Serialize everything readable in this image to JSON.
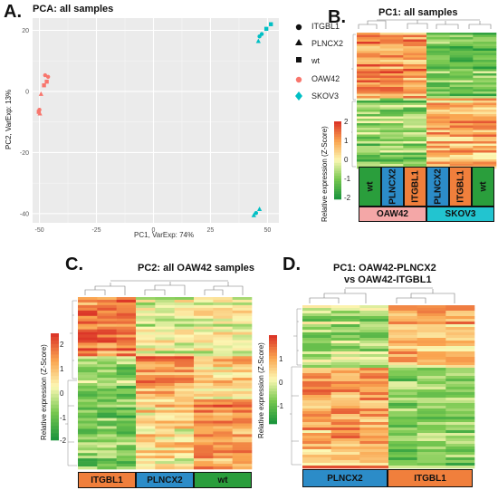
{
  "colors": {
    "oaw42": "#F8766D",
    "skov3": "#00BFC4",
    "box_orange": "#F07F3C",
    "box_blue": "#2C8CC8",
    "box_green": "#2A9E3C",
    "box_pink": "#F4A7A7",
    "box_cyan": "#22C4D0",
    "pca_bg": "#EBEBEB"
  },
  "panels": {
    "a": {
      "letter": "A."
    },
    "b": {
      "letter": "B.",
      "title": "PC1: all samples",
      "cb_label": "Relative expression (Z-Score)",
      "cb_ticks": [
        "2",
        "1",
        "0",
        "-1",
        "-2"
      ],
      "boxes_top": [
        "wt",
        "PLNCX2",
        "ITGBL1",
        "PLNCX2",
        "ITGBL1",
        "wt"
      ],
      "boxes_bottom": [
        "OAW42",
        "SKOV3"
      ]
    },
    "c": {
      "letter": "C.",
      "title": "PC2: all OAW42 samples",
      "cb_label": "Relative expression (Z-Score)",
      "cb_ticks": [
        "2",
        "1",
        "0",
        "-1",
        "-2"
      ],
      "boxes": [
        "ITGBL1",
        "PLNCX2",
        "wt"
      ]
    },
    "d": {
      "letter": "D.",
      "title_line1": "PC1: OAW42-PLNCX2",
      "title_line2": "vs OAW42-ITGBL1",
      "cb_label": "Relative expression (Z-Score)",
      "cb_ticks": [
        "1",
        "0",
        "-1"
      ],
      "boxes": [
        "PLNCX2",
        "ITGBL1"
      ]
    }
  },
  "chart_data": [
    {
      "type": "scatter",
      "title": "PCA: all samples",
      "xlabel": "PC1, VarExp: 74%",
      "ylabel": "PC2, VarExp: 13%",
      "xlim": [
        -53,
        55
      ],
      "ylim": [
        -43,
        24
      ],
      "x_ticks": [
        "-50",
        "-25",
        "0",
        "25",
        "50"
      ],
      "y_ticks": [
        "20",
        "0",
        "-20",
        "-40"
      ],
      "legend_shape": [
        "ITGBL1",
        "PLNCX2",
        "wt"
      ],
      "legend_color": [
        "OAW42",
        "SKOV3"
      ],
      "legend_placement": "right",
      "grid": true,
      "series": [
        {
          "name": "OAW42",
          "points": [
            {
              "x": -47.5,
              "y": 5.3,
              "shape": "circle"
            },
            {
              "x": -46.2,
              "y": 4.8,
              "shape": "circle"
            },
            {
              "x": -48.0,
              "y": 2.0,
              "shape": "square"
            },
            {
              "x": -46.8,
              "y": 3.2,
              "shape": "square"
            },
            {
              "x": -49.3,
              "y": -0.8,
              "shape": "triangle"
            },
            {
              "x": -50.0,
              "y": -6.0,
              "shape": "circle"
            },
            {
              "x": -49.8,
              "y": -7.2,
              "shape": "triangle"
            },
            {
              "x": -50.3,
              "y": -6.7,
              "shape": "square"
            }
          ]
        },
        {
          "name": "SKOV3",
          "points": [
            {
              "x": 51.5,
              "y": 22.0,
              "shape": "square"
            },
            {
              "x": 49.5,
              "y": 20.5,
              "shape": "square"
            },
            {
              "x": 47.5,
              "y": 18.8,
              "shape": "circle"
            },
            {
              "x": 46.5,
              "y": 18.0,
              "shape": "circle"
            },
            {
              "x": 46.0,
              "y": 16.5,
              "shape": "triangle"
            },
            {
              "x": 46.5,
              "y": -38.5,
              "shape": "triangle"
            },
            {
              "x": 45.0,
              "y": -39.8,
              "shape": "circle"
            },
            {
              "x": 44.0,
              "y": -40.5,
              "shape": "triangle"
            }
          ]
        }
      ]
    },
    {
      "type": "heatmap",
      "title": "PC1: all samples",
      "columns": 6,
      "groups": [
        "wt",
        "PLNCX2",
        "ITGBL1",
        "PLNCX2",
        "ITGBL1",
        "wt"
      ],
      "clusters": [
        "OAW42",
        "SKOV3"
      ],
      "colorbar_range": [
        -2,
        2
      ]
    },
    {
      "type": "heatmap",
      "title": "PC2: all OAW42 samples",
      "columns": 9,
      "groups": [
        "ITGBL1",
        "PLNCX2",
        "wt"
      ],
      "colorbar_range": [
        -2,
        2
      ]
    },
    {
      "type": "heatmap",
      "title": "PC1: OAW42-PLNCX2 vs OAW42-ITGBL1",
      "columns": 6,
      "groups": [
        "PLNCX2",
        "ITGBL1"
      ],
      "colorbar_range": [
        -1,
        1
      ]
    }
  ]
}
